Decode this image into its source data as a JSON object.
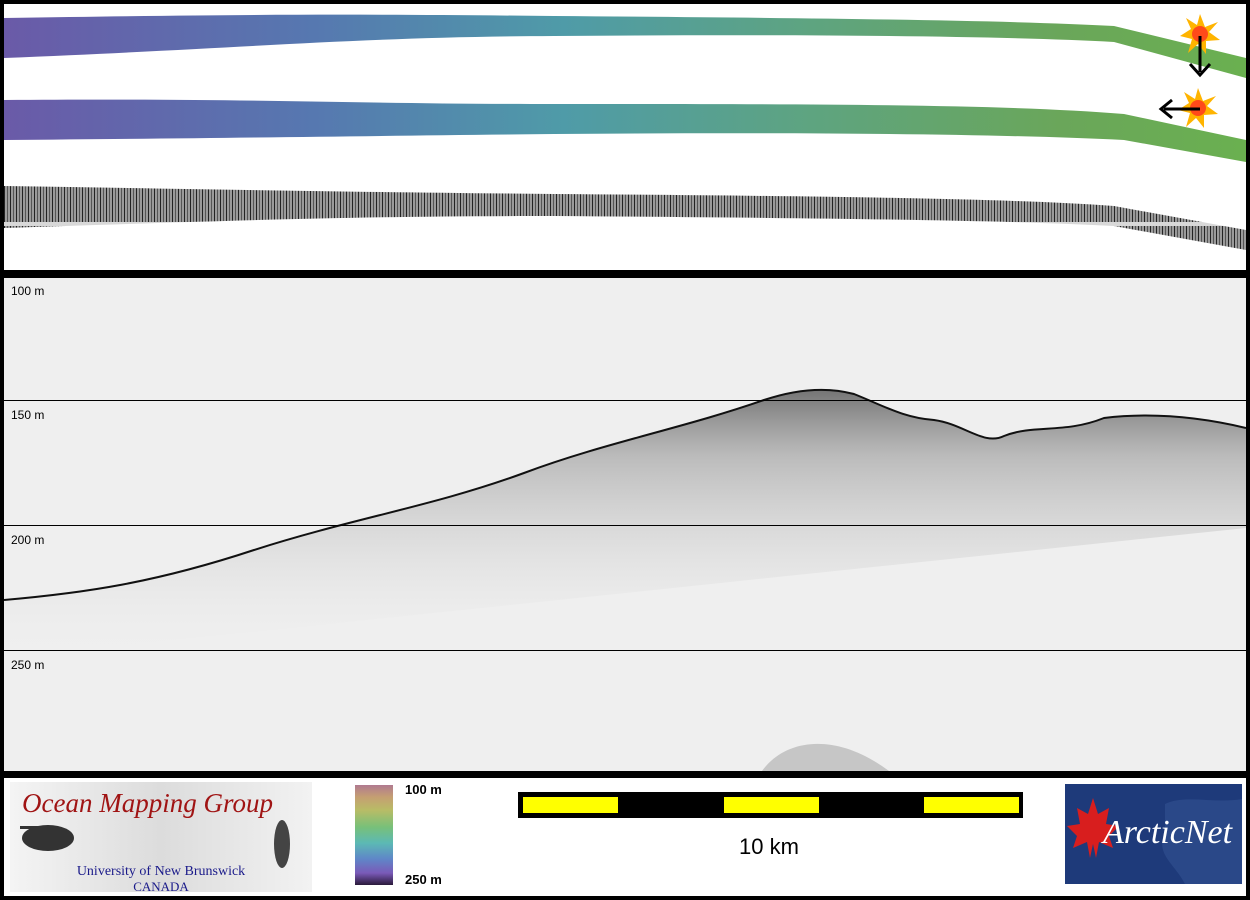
{
  "depth_labels": [
    "100 m",
    "150 m",
    "200 m",
    "250 m"
  ],
  "colorbar": {
    "top_label": "100 m",
    "bottom_label": "250 m"
  },
  "scale": {
    "label": "10 km",
    "segments": [
      "yellow",
      "black",
      "yellow",
      "black",
      "yellow"
    ]
  },
  "logos": {
    "omg": {
      "title": "Ocean Mapping Group",
      "line1": "University of New Brunswick",
      "line2": "CANADA"
    },
    "arcticnet": {
      "text": "ArcticNet"
    }
  },
  "icons": [
    "sun-marker-icon",
    "arrow-down-icon",
    "arrow-left-icon",
    "maple-leaf-icon"
  ],
  "colors": {
    "frame": "#000000",
    "scale_yellow": "#ffff00",
    "omg_red": "#a01414",
    "omg_blue": "#1a1a8a",
    "arcticnet_bg": "#1e3a7a"
  }
}
